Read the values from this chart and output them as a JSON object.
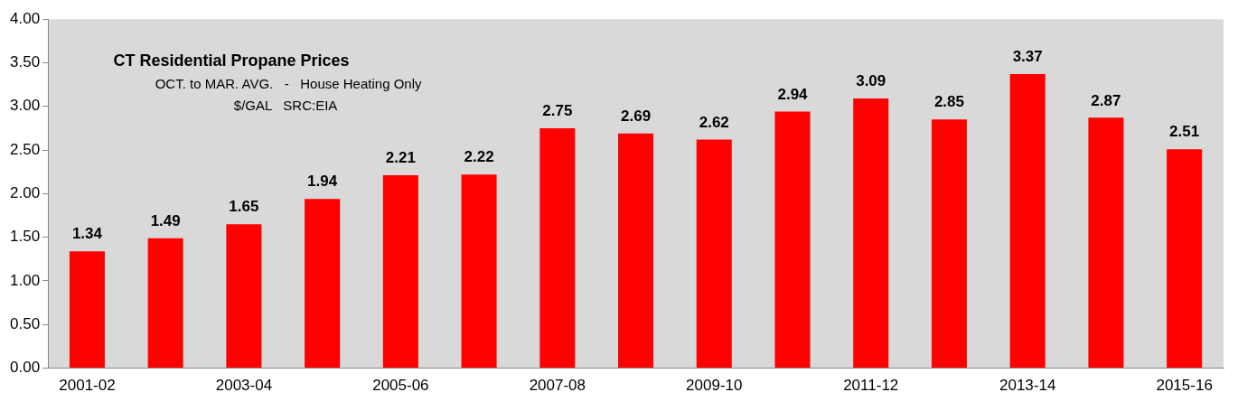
{
  "chart_data": {
    "type": "bar",
    "title": "CT Residential Propane Prices",
    "subtitle": "OCT. to MAR. AVG.   -   House Heating Only",
    "annotations": [
      "$/GAL   SRC:EIA"
    ],
    "categories": [
      "2001-02",
      null,
      "2003-04",
      null,
      "2005-06",
      null,
      "2007-08",
      null,
      "2009-10",
      null,
      "2011-12",
      null,
      "2013-14",
      null,
      "2015-16"
    ],
    "values": [
      1.34,
      1.49,
      1.65,
      1.94,
      2.21,
      2.22,
      2.75,
      2.69,
      2.62,
      2.94,
      3.09,
      2.85,
      3.37,
      2.87,
      2.51
    ],
    "color": "#ff0000",
    "data_labels": true,
    "grid": false,
    "legend": false,
    "ylim": [
      0,
      4
    ],
    "yticks": [
      {
        "value": 0,
        "label": "0.00"
      },
      {
        "value": 0.5,
        "label": "0.50"
      },
      {
        "value": 1,
        "label": "1.00"
      },
      {
        "value": 1.5,
        "label": "1.50"
      },
      {
        "value": 2,
        "label": "2.00"
      },
      {
        "value": 2.5,
        "label": "2.50"
      },
      {
        "value": 3,
        "label": "3.00"
      },
      {
        "value": 3.5,
        "label": "3.50"
      },
      {
        "value": 4,
        "label": "4.00"
      }
    ]
  }
}
